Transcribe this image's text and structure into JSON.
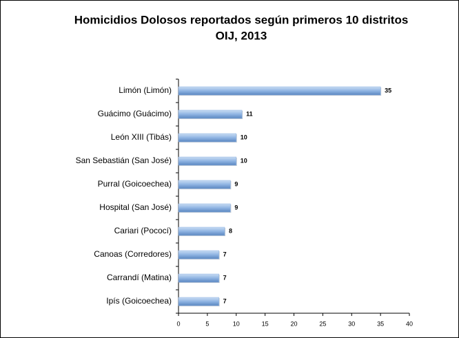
{
  "chart_data": {
    "type": "barh",
    "title_lines": [
      "Homicidios Dolosos reportados según primeros 10 distritos",
      "OIJ, 2013"
    ],
    "categories": [
      "Limón (Limón)",
      "Guácimo (Guácimo)",
      "León XIII (Tibás)",
      "San Sebastián (San José)",
      "Purral (Goicoechea)",
      "Hospital (San José)",
      "Cariari (Pococí)",
      "Canoas (Corredores)",
      "Carrandí (Matina)",
      "Ipís (Goicoechea)"
    ],
    "values": [
      35,
      11,
      10,
      10,
      9,
      9,
      8,
      7,
      7,
      7
    ],
    "color": "#8fb4e3",
    "xlim": [
      0,
      40
    ],
    "xticks": [
      0,
      5,
      10,
      15,
      20,
      25,
      30,
      35,
      40
    ]
  }
}
